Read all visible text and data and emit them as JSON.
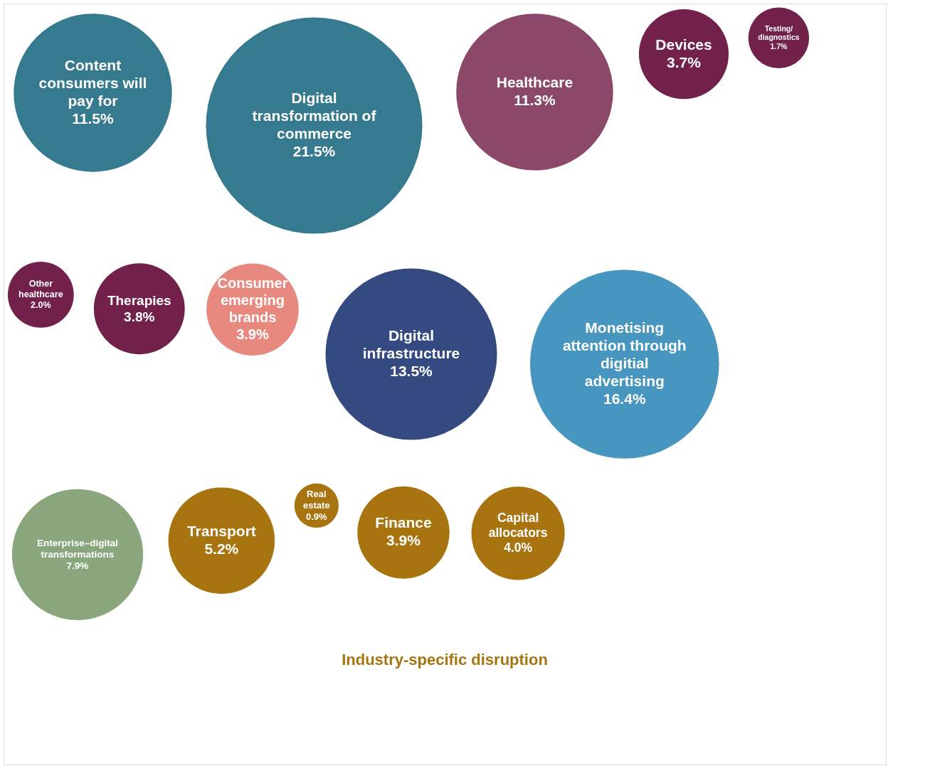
{
  "chart_data": {
    "type": "other",
    "categories": [
      "Content consumers will pay for",
      "Digital transformation of commerce",
      "Healthcare",
      "Devices",
      "Testing/ diagnostics",
      "Other healthcare",
      "Therapies",
      "Consumer emerging brands",
      "Digital infrastructure",
      "Monetising attention through digitial advertising",
      "Enterprise–digital transformations",
      "Transport",
      "Real estate",
      "Finance",
      "Capital allocators"
    ],
    "values": [
      11.5,
      21.5,
      11.3,
      3.7,
      1.7,
      2.0,
      3.8,
      3.9,
      13.5,
      16.4,
      7.9,
      5.2,
      0.9,
      3.9,
      4.0
    ],
    "value_labels": [
      "11.5%",
      "21.5%",
      "11.3%",
      "3.7%",
      "1.7%",
      "2.0%",
      "3.8%",
      "3.9%",
      "13.5%",
      "16.4%",
      "7.9%",
      "5.2%",
      "0.9%",
      "3.9%",
      "4.0%"
    ],
    "colors": [
      "#357a8f",
      "#357a8f",
      "#8b4868",
      "#72214b",
      "#72214b",
      "#72214b",
      "#72214b",
      "#e8897f",
      "#344a80",
      "#4796bf",
      "#8aa67c",
      "#a87410",
      "#a87410",
      "#a87410",
      "#a87410"
    ],
    "annotations": [
      "Industry-specific disruption"
    ]
  }
}
